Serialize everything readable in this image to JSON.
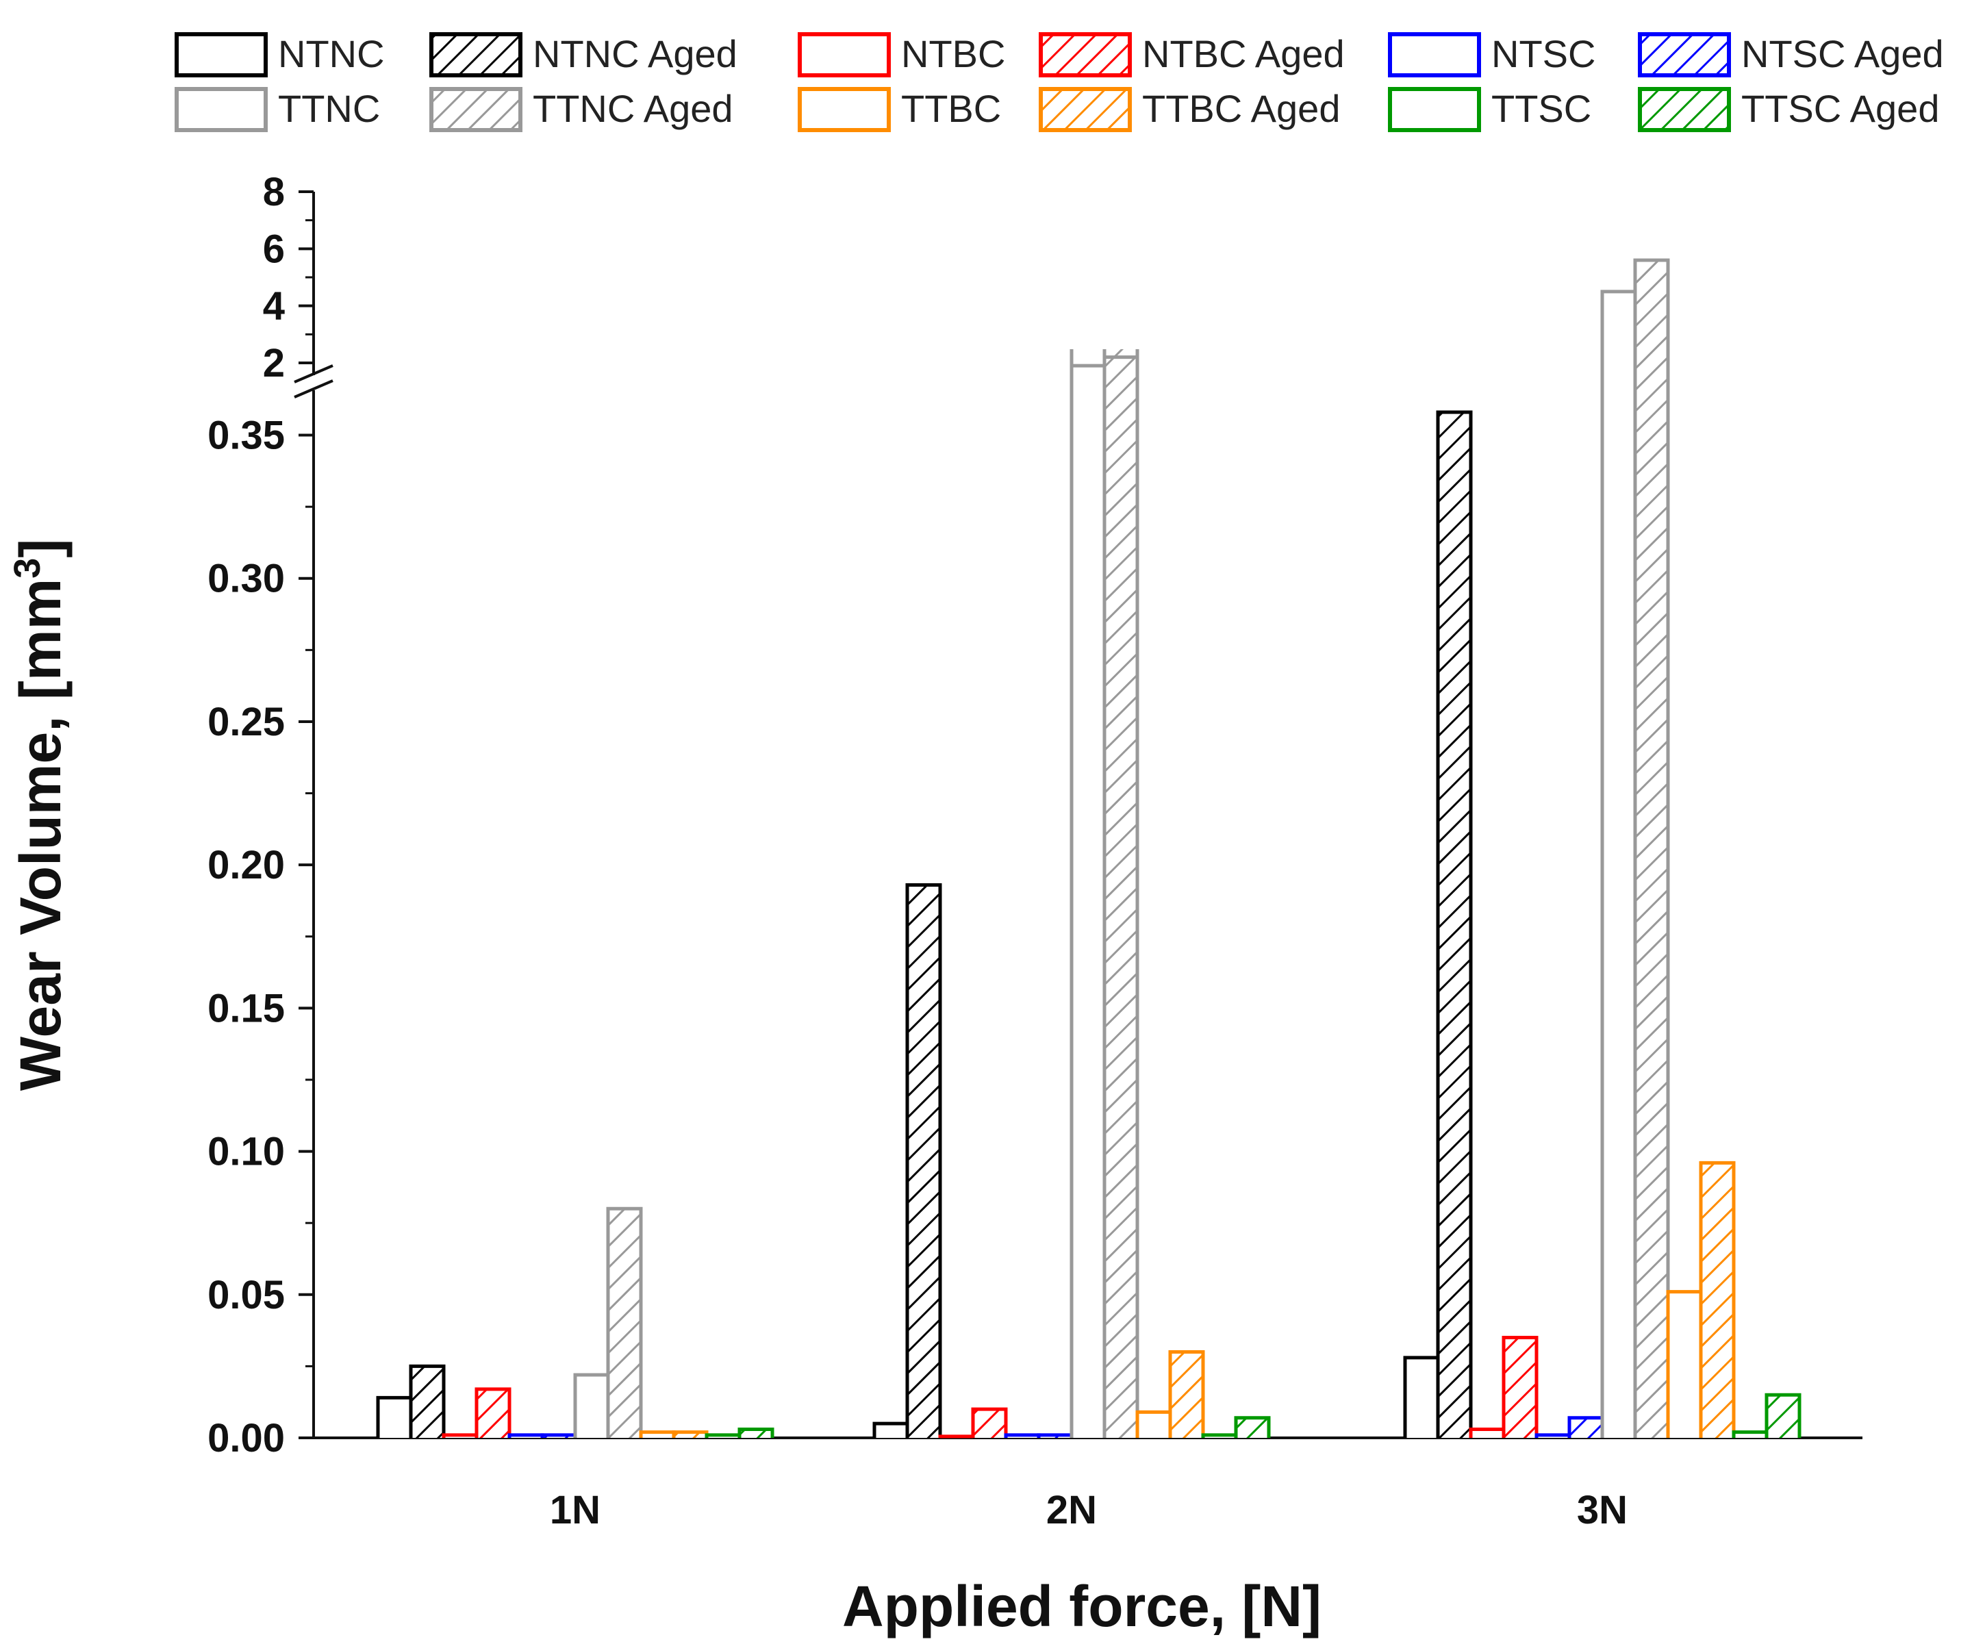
{
  "chart_data": {
    "type": "bar",
    "xlabel": "Applied force, [N]",
    "ylabel_main": "Wear Volume, [mm",
    "ylabel_sup": "3",
    "ylabel_end": "]",
    "categories": [
      "1N",
      "2N",
      "3N"
    ],
    "ylim_lower": [
      0,
      0.38
    ],
    "ylim_upper": [
      2,
      8
    ],
    "lower_ticks": [
      "0.00",
      "0.05",
      "0.10",
      "0.15",
      "0.20",
      "0.25",
      "0.30",
      "0.35"
    ],
    "upper_ticks": [
      "2",
      "4",
      "6",
      "8"
    ],
    "axis_break": true,
    "series": [
      {
        "name": "NTNC",
        "color": "#000000",
        "hatched": false,
        "values": [
          0.014,
          0.005,
          0.028
        ]
      },
      {
        "name": "NTNC Aged",
        "color": "#000000",
        "hatched": true,
        "values": [
          0.025,
          0.193,
          0.358
        ]
      },
      {
        "name": "NTBC",
        "color": "#ff0000",
        "hatched": false,
        "values": [
          0.001,
          0.0005,
          0.003
        ]
      },
      {
        "name": "NTBC Aged",
        "color": "#ff0000",
        "hatched": true,
        "values": [
          0.017,
          0.01,
          0.035
        ]
      },
      {
        "name": "NTSC",
        "color": "#0000ff",
        "hatched": false,
        "values": [
          0.001,
          0.001,
          0.001
        ]
      },
      {
        "name": "NTSC Aged",
        "color": "#0000ff",
        "hatched": true,
        "values": [
          0.001,
          0.001,
          0.007
        ]
      },
      {
        "name": "TTNC",
        "color": "#999999",
        "hatched": false,
        "values": [
          0.022,
          1.9,
          4.5
        ]
      },
      {
        "name": "TTNC Aged",
        "color": "#999999",
        "hatched": true,
        "values": [
          0.08,
          2.2,
          5.6
        ]
      },
      {
        "name": "TTBC",
        "color": "#ff8c00",
        "hatched": false,
        "values": [
          0.002,
          0.009,
          0.051
        ]
      },
      {
        "name": "TTBC Aged",
        "color": "#ff8c00",
        "hatched": true,
        "values": [
          0.002,
          0.03,
          0.096
        ]
      },
      {
        "name": "TTSC",
        "color": "#009900",
        "hatched": false,
        "values": [
          0.001,
          0.001,
          0.002
        ]
      },
      {
        "name": "TTSC Aged",
        "color": "#009900",
        "hatched": true,
        "values": [
          0.003,
          0.007,
          0.015
        ]
      }
    ],
    "legend_rows": [
      [
        "NTNC",
        "NTNC Aged",
        "NTBC",
        "NTBC Aged",
        "NTSC",
        "NTSC Aged"
      ],
      [
        "TTNC",
        "TTNC Aged",
        "TTBC",
        "TTBC Aged",
        "TTSC",
        "TTSC Aged"
      ]
    ]
  }
}
